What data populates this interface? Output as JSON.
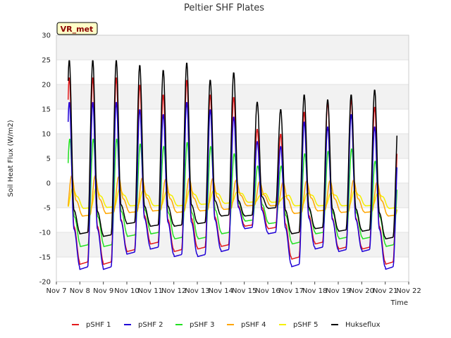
{
  "chart_data": {
    "type": "line",
    "title": "Peltier SHF Plates",
    "xlabel": "Time",
    "ylabel": "Soil Heat Flux (W/m2)",
    "ylim": [
      -20,
      30
    ],
    "yticks": [
      "-20",
      "-15",
      "-10",
      "-5",
      "0",
      "5",
      "10",
      "15",
      "20",
      "25",
      "30"
    ],
    "xlim": [
      "2023-11-07",
      "2023-11-22"
    ],
    "xticks": [
      "Nov 7",
      "Nov 8",
      "Nov 9",
      "Nov 10",
      "Nov 11",
      "Nov 12",
      "Nov 13",
      "Nov 14",
      "Nov 15",
      "Nov 16",
      "Nov 17",
      "Nov 18",
      "Nov 19",
      "Nov 20",
      "Nov 21",
      "Nov 22"
    ],
    "data_start": "Nov 7 12:00",
    "badge": "VR_met",
    "grid": "horizontal bands",
    "legend_position": "bottom",
    "daily_peak_max": [
      {
        "date": "Nov 8",
        "pSHF 1": 21.5,
        "pSHF 2": 16.5,
        "pSHF 3": 9.0,
        "pSHF 4": 1.5,
        "pSHF 5": -1.0,
        "Hukseflux": 25.0
      },
      {
        "date": "Nov 9",
        "pSHF 1": 21.5,
        "pSHF 2": 16.5,
        "pSHF 3": 9.0,
        "pSHF 4": 1.3,
        "pSHF 5": -1.2,
        "Hukseflux": 25.0
      },
      {
        "date": "Nov 10",
        "pSHF 1": 20.0,
        "pSHF 2": 15.0,
        "pSHF 3": 8.0,
        "pSHF 4": 1.0,
        "pSHF 5": -1.5,
        "Hukseflux": 24.0
      },
      {
        "date": "Nov 11",
        "pSHF 1": 18.0,
        "pSHF 2": 14.0,
        "pSHF 3": 7.5,
        "pSHF 4": 0.8,
        "pSHF 5": -1.7,
        "Hukseflux": 23.0
      },
      {
        "date": "Nov 12",
        "pSHF 1": 21.0,
        "pSHF 2": 16.5,
        "pSHF 3": 8.3,
        "pSHF 4": 1.0,
        "pSHF 5": -1.2,
        "Hukseflux": 24.5
      },
      {
        "date": "Nov 13",
        "pSHF 1": 18.0,
        "pSHF 2": 15.0,
        "pSHF 3": 7.5,
        "pSHF 4": 0.9,
        "pSHF 5": -1.5,
        "Hukseflux": 21.0
      },
      {
        "date": "Nov 14",
        "pSHF 1": 17.5,
        "pSHF 2": 13.5,
        "pSHF 3": 6.0,
        "pSHF 4": 0.6,
        "pSHF 5": -1.8,
        "Hukseflux": 22.5
      },
      {
        "date": "Nov 15",
        "pSHF 1": 11.0,
        "pSHF 2": 8.5,
        "pSHF 3": 3.5,
        "pSHF 4": 0.3,
        "pSHF 5": -2.5,
        "Hukseflux": 16.5
      },
      {
        "date": "Nov 16",
        "pSHF 1": 10.0,
        "pSHF 2": 7.5,
        "pSHF 3": 3.5,
        "pSHF 4": 0.2,
        "pSHF 5": -2.8,
        "Hukseflux": 15.0
      },
      {
        "date": "Nov 17",
        "pSHF 1": 14.5,
        "pSHF 2": 12.5,
        "pSHF 3": 6.0,
        "pSHF 4": 0.4,
        "pSHF 5": -2.0,
        "Hukseflux": 18.0
      },
      {
        "date": "Nov 18",
        "pSHF 1": 16.5,
        "pSHF 2": 11.5,
        "pSHF 3": 6.5,
        "pSHF 4": 0.5,
        "pSHF 5": -2.0,
        "Hukseflux": 17.0
      },
      {
        "date": "Nov 19",
        "pSHF 1": 17.0,
        "pSHF 2": 14.0,
        "pSHF 3": 7.0,
        "pSHF 4": 0.6,
        "pSHF 5": -1.5,
        "Hukseflux": 18.0
      },
      {
        "date": "Nov 20",
        "pSHF 1": 15.5,
        "pSHF 2": 11.5,
        "pSHF 3": 4.5,
        "pSHF 4": 0.2,
        "pSHF 5": -2.0,
        "Hukseflux": 19.0
      },
      {
        "date": "Nov 21",
        "pSHF 1": 9.0,
        "pSHF 2": 6.0,
        "pSHF 3": 2.0,
        "pSHF 4": -1.5,
        "pSHF 5": -2.5,
        "Hukseflux": 12.5
      }
    ],
    "daily_trough_min": [
      {
        "date": "Nov 8",
        "pSHF 1": -16.0,
        "pSHF 2": -17.0,
        "pSHF 3": -12.5,
        "pSHF 4": -6.5,
        "pSHF 5": -5.0,
        "Hukseflux": -10.0
      },
      {
        "date": "Nov 9",
        "pSHF 1": -16.0,
        "pSHF 2": -17.0,
        "pSHF 3": -12.5,
        "pSHF 4": -6.0,
        "pSHF 5": -4.8,
        "Hukseflux": -10.5
      },
      {
        "date": "Nov 10",
        "pSHF 1": -13.5,
        "pSHF 2": -14.0,
        "pSHF 3": -10.5,
        "pSHF 4": -5.8,
        "pSHF 5": -4.5,
        "Hukseflux": -8.0
      },
      {
        "date": "Nov 11",
        "pSHF 1": -12.0,
        "pSHF 2": -13.0,
        "pSHF 3": -10.0,
        "pSHF 4": -5.5,
        "pSHF 5": -4.5,
        "Hukseflux": -8.5
      },
      {
        "date": "Nov 12",
        "pSHF 1": -13.5,
        "pSHF 2": -14.5,
        "pSHF 3": -11.0,
        "pSHF 4": -5.8,
        "pSHF 5": -4.5,
        "Hukseflux": -8.5
      },
      {
        "date": "Nov 13",
        "pSHF 1": -13.0,
        "pSHF 2": -14.5,
        "pSHF 3": -11.0,
        "pSHF 4": -5.5,
        "pSHF 5": -4.2,
        "Hukseflux": -8.0
      },
      {
        "date": "Nov 14",
        "pSHF 1": -12.5,
        "pSHF 2": -13.5,
        "pSHF 3": -10.0,
        "pSHF 4": -5.2,
        "pSHF 5": -4.0,
        "Hukseflux": -6.5
      },
      {
        "date": "Nov 15",
        "pSHF 1": -8.5,
        "pSHF 2": -9.0,
        "pSHF 3": -7.5,
        "pSHF 4": -4.5,
        "pSHF 5": -3.8,
        "Hukseflux": -6.5
      },
      {
        "date": "Nov 16",
        "pSHF 1": -9.0,
        "pSHF 2": -10.0,
        "pSHF 3": -8.0,
        "pSHF 4": -4.5,
        "pSHF 5": -3.8,
        "Hukseflux": -5.0
      },
      {
        "date": "Nov 17",
        "pSHF 1": -15.0,
        "pSHF 2": -16.5,
        "pSHF 3": -12.0,
        "pSHF 4": -6.0,
        "pSHF 5": -4.5,
        "Hukseflux": -10.0
      },
      {
        "date": "Nov 18",
        "pSHF 1": -12.0,
        "pSHF 2": -13.0,
        "pSHF 3": -10.0,
        "pSHF 4": -5.5,
        "pSHF 5": -4.5,
        "Hukseflux": -9.0
      },
      {
        "date": "Nov 19",
        "pSHF 1": -13.0,
        "pSHF 2": -13.5,
        "pSHF 3": -11.0,
        "pSHF 4": -5.8,
        "pSHF 5": -4.5,
        "Hukseflux": -9.5
      },
      {
        "date": "Nov 20",
        "pSHF 1": -13.0,
        "pSHF 2": -13.5,
        "pSHF 3": -11.0,
        "pSHF 4": -5.8,
        "pSHF 5": -4.5,
        "Hukseflux": -9.5
      },
      {
        "date": "Nov 21",
        "pSHF 1": -16.0,
        "pSHF 2": -17.0,
        "pSHF 3": -12.5,
        "pSHF 4": -6.5,
        "pSHF 5": -5.0,
        "Hukseflux": -11.0
      },
      {
        "date": "Nov 22",
        "pSHF 1": -16.0,
        "pSHF 2": -16.5,
        "pSHF 3": -11.5,
        "pSHF 4": -5.0,
        "pSHF 5": -4.0,
        "Hukseflux": -11.0
      }
    ],
    "series": [
      {
        "name": "pSHF 1",
        "color": "#e31a1c"
      },
      {
        "name": "pSHF 2",
        "color": "#1f00d6"
      },
      {
        "name": "pSHF 3",
        "color": "#22e022"
      },
      {
        "name": "pSHF 4",
        "color": "#ffa500"
      },
      {
        "name": "pSHF 5",
        "color": "#f5f000"
      },
      {
        "name": "Hukseflux",
        "color": "#000000"
      }
    ]
  }
}
